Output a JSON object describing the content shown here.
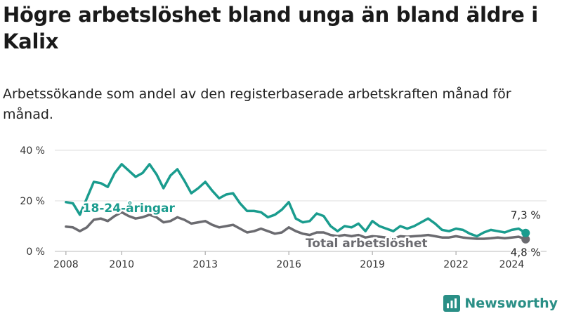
{
  "title": "Högre arbetslöshet bland unga än bland äldre i Kalix",
  "subtitle": "Arbetssökande som andel av den registerbaserade arbetskraften månad för månad.",
  "brand": {
    "name": "Newsworthy",
    "icon": "bar-chart-logo-icon"
  },
  "colors": {
    "youth": "#1a9c8e",
    "total": "#6b6b70",
    "grid": "#dddddd",
    "brand": "#2a8f86"
  },
  "chart_data": {
    "type": "line",
    "xlabel": "",
    "ylabel": "",
    "xlim": [
      2007.6,
      2025.25
    ],
    "ylim": [
      0,
      40
    ],
    "grid": true,
    "y_ticks": [
      {
        "value": 0,
        "label": "0 %"
      },
      {
        "value": 20,
        "label": "20 %"
      },
      {
        "value": 40,
        "label": "40 %"
      }
    ],
    "x_ticks": [
      {
        "value": 2008,
        "label": "2008"
      },
      {
        "value": 2010,
        "label": "2010"
      },
      {
        "value": 2013,
        "label": "2013"
      },
      {
        "value": 2016,
        "label": "2016"
      },
      {
        "value": 2019,
        "label": "2019"
      },
      {
        "value": 2022,
        "label": "2022"
      },
      {
        "value": 2024,
        "label": "2024"
      }
    ],
    "series": [
      {
        "name": "18-24-åringar",
        "label_at": [
          2008.6,
          15.5
        ],
        "end_label": "7,3 %",
        "x": [
          2008.0,
          2008.25,
          2008.5,
          2008.75,
          2009.0,
          2009.25,
          2009.5,
          2009.75,
          2010.0,
          2010.25,
          2010.5,
          2010.75,
          2011.0,
          2011.25,
          2011.5,
          2011.75,
          2012.0,
          2012.25,
          2012.5,
          2012.75,
          2013.0,
          2013.25,
          2013.5,
          2013.75,
          2014.0,
          2014.25,
          2014.5,
          2014.75,
          2015.0,
          2015.25,
          2015.5,
          2015.75,
          2016.0,
          2016.25,
          2016.5,
          2016.75,
          2017.0,
          2017.25,
          2017.5,
          2017.75,
          2018.0,
          2018.25,
          2018.5,
          2018.75,
          2019.0,
          2019.25,
          2019.5,
          2019.75,
          2020.0,
          2020.25,
          2020.5,
          2020.75,
          2021.0,
          2021.25,
          2021.5,
          2021.75,
          2022.0,
          2022.25,
          2022.5,
          2022.75,
          2023.0,
          2023.25,
          2023.5,
          2023.75,
          2024.0,
          2024.25,
          2024.5
        ],
        "y": [
          19.5,
          19.0,
          14.5,
          21.0,
          27.5,
          27.0,
          25.5,
          31.0,
          34.5,
          32.0,
          29.5,
          31.0,
          34.5,
          30.5,
          25.0,
          30.0,
          32.5,
          28.0,
          23.0,
          25.0,
          27.5,
          24.0,
          21.0,
          22.5,
          23.0,
          19.0,
          16.0,
          16.0,
          15.5,
          13.5,
          14.5,
          16.5,
          19.5,
          13.0,
          11.5,
          12.0,
          15.0,
          14.0,
          10.0,
          8.0,
          10.0,
          9.5,
          11.0,
          8.0,
          12.0,
          10.0,
          9.0,
          8.0,
          10.0,
          9.0,
          10.0,
          11.5,
          13.0,
          11.0,
          8.5,
          8.0,
          9.0,
          8.5,
          7.0,
          6.0,
          7.5,
          8.5,
          8.0,
          7.5,
          8.5,
          9.0,
          7.3
        ]
      },
      {
        "name": "Total arbetslöshet",
        "label_at": [
          2016.6,
          1.7
        ],
        "end_label": "4,8 %",
        "x": [
          2008.0,
          2008.25,
          2008.5,
          2008.75,
          2009.0,
          2009.25,
          2009.5,
          2009.75,
          2010.0,
          2010.25,
          2010.5,
          2010.75,
          2011.0,
          2011.25,
          2011.5,
          2011.75,
          2012.0,
          2012.25,
          2012.5,
          2012.75,
          2013.0,
          2013.25,
          2013.5,
          2013.75,
          2014.0,
          2014.25,
          2014.5,
          2014.75,
          2015.0,
          2015.25,
          2015.5,
          2015.75,
          2016.0,
          2016.25,
          2016.5,
          2016.75,
          2017.0,
          2017.25,
          2017.5,
          2017.75,
          2018.0,
          2018.25,
          2018.5,
          2018.75,
          2019.0,
          2019.25,
          2019.5,
          2019.75,
          2020.0,
          2020.25,
          2020.5,
          2020.75,
          2021.0,
          2021.25,
          2021.5,
          2021.75,
          2022.0,
          2022.25,
          2022.5,
          2022.75,
          2023.0,
          2023.25,
          2023.5,
          2023.75,
          2024.0,
          2024.25,
          2024.5
        ],
        "y": [
          9.8,
          9.5,
          8.0,
          9.5,
          12.5,
          13.0,
          12.0,
          14.0,
          15.5,
          14.0,
          13.0,
          13.5,
          14.5,
          13.5,
          11.5,
          12.0,
          13.5,
          12.5,
          11.0,
          11.5,
          12.0,
          10.5,
          9.5,
          10.0,
          10.5,
          9.0,
          7.5,
          8.0,
          9.0,
          8.0,
          7.0,
          7.5,
          9.5,
          8.0,
          7.0,
          6.5,
          7.5,
          7.5,
          6.5,
          6.0,
          6.5,
          6.0,
          6.5,
          5.5,
          6.0,
          5.8,
          5.5,
          5.2,
          6.0,
          5.8,
          6.0,
          6.2,
          6.5,
          6.0,
          5.5,
          5.5,
          6.0,
          5.5,
          5.2,
          5.0,
          5.0,
          5.2,
          5.5,
          5.2,
          5.5,
          5.8,
          4.8
        ]
      }
    ]
  }
}
